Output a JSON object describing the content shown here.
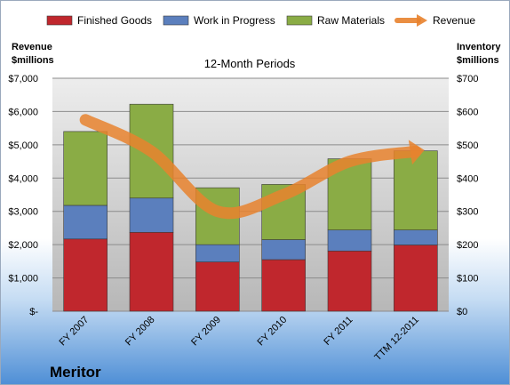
{
  "chart_data": {
    "type": "bar",
    "title": "12-Month Periods",
    "company": "Meritor",
    "left_axis_title": [
      "Revenue",
      "$millions"
    ],
    "right_axis_title": [
      "Inventory",
      "$millions"
    ],
    "categories": [
      "FY 2007",
      "FY 2008",
      "FY 2009",
      "FY 2010",
      "FY 2011",
      "TTM 12-2011"
    ],
    "stacked": true,
    "series": [
      {
        "name": "Finished Goods",
        "axis": "right",
        "color": "#c0272d",
        "values": [
          217,
          237,
          148,
          155,
          181,
          199
        ]
      },
      {
        "name": "Work in Progress",
        "axis": "right",
        "color": "#5b7fbd",
        "values": [
          101,
          103,
          52,
          60,
          63,
          45
        ]
      },
      {
        "name": "Raw Materials",
        "axis": "right",
        "color": "#8aac45",
        "values": [
          222,
          282,
          171,
          166,
          214,
          238
        ]
      },
      {
        "name": "Revenue",
        "type": "line",
        "axis": "left",
        "color": "#e8822e",
        "values": [
          5750,
          4800,
          3000,
          3500,
          4500,
          4800
        ]
      }
    ],
    "left_axis": {
      "min": 0,
      "max": 7000,
      "step": 1000,
      "tick_labels": [
        "$-",
        "$1,000",
        "$2,000",
        "$3,000",
        "$4,000",
        "$5,000",
        "$6,000",
        "$7,000"
      ]
    },
    "right_axis": {
      "min": 0,
      "max": 700,
      "step": 100,
      "tick_labels": [
        "$0",
        "$100",
        "$200",
        "$300",
        "$400",
        "$500",
        "$600",
        "$700"
      ]
    },
    "legend_position": "top",
    "grid": true
  }
}
